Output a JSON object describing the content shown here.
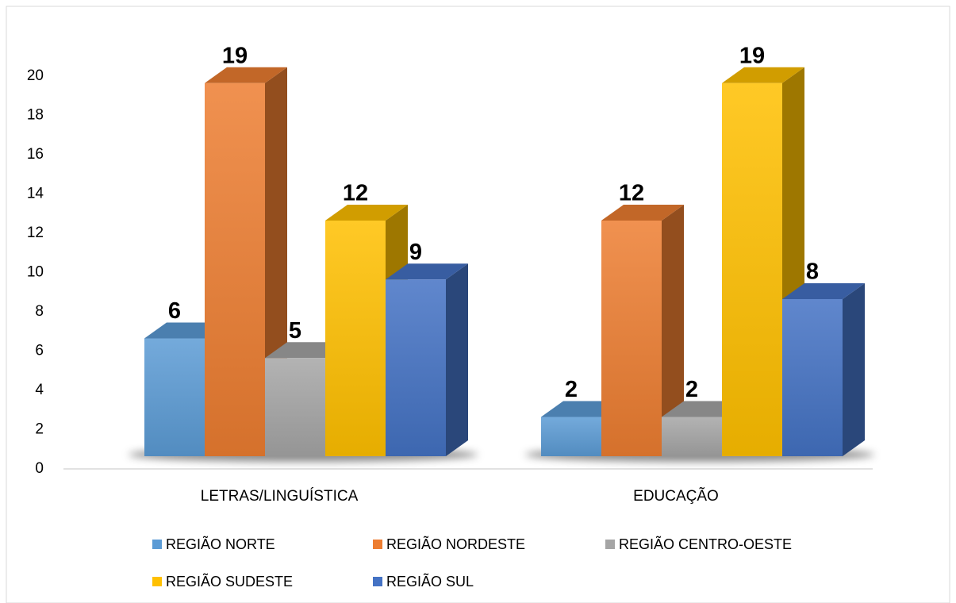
{
  "chart_data": {
    "type": "bar3d",
    "categories": [
      "LETRAS/LINGUÍSTICA",
      "EDUCAÇÃO"
    ],
    "series": [
      {
        "name": "REGIÃO NORTE",
        "color": "#5b9bd5",
        "values": [
          6,
          2
        ]
      },
      {
        "name": "REGIÃO NORDESTE",
        "color": "#ed7d31",
        "values": [
          19,
          12
        ]
      },
      {
        "name": "REGIÃO CENTRO-OESTE",
        "color": "#a5a5a5",
        "values": [
          5,
          2
        ]
      },
      {
        "name": "REGIÃO SUDESTE",
        "color": "#ffc000",
        "values": [
          12,
          19
        ]
      },
      {
        "name": "REGIÃO SUL",
        "color": "#4472c4",
        "values": [
          9,
          8
        ]
      }
    ],
    "ylim": [
      0,
      20
    ],
    "yticks": [
      0,
      2,
      4,
      6,
      8,
      10,
      12,
      14,
      16,
      18,
      20
    ],
    "grid": false,
    "legend": "bottom"
  }
}
